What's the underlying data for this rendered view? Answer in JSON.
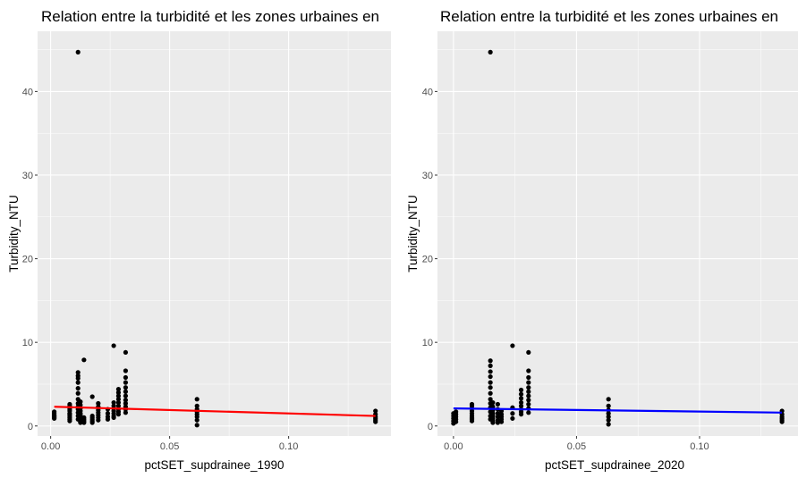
{
  "chart_data": [
    {
      "type": "scatter",
      "title": "Relation entre la turbidité et les zones urbaines en",
      "xlabel": "pctSET_supdrainee_1990",
      "ylabel": "Turbidity_NTU",
      "xlim": [
        -0.0055,
        0.143
      ],
      "ylim": [
        -1.2,
        47.2
      ],
      "x_ticks": [
        0.0,
        0.05,
        0.1
      ],
      "x_tick_labels": [
        "0.00",
        "0.05",
        "0.10"
      ],
      "y_ticks": [
        0,
        10,
        20,
        30,
        40
      ],
      "y_tick_labels": [
        "0",
        "10",
        "20",
        "30",
        "40"
      ],
      "grid": true,
      "points": {
        "x": [
          0.0015,
          0.0015,
          0.0015,
          0.0015,
          0.0015,
          0.0015,
          0.0015,
          0.008,
          0.008,
          0.008,
          0.008,
          0.008,
          0.008,
          0.008,
          0.008,
          0.008,
          0.008,
          0.008,
          0.0115,
          0.0115,
          0.0115,
          0.0115,
          0.0115,
          0.0115,
          0.0115,
          0.0115,
          0.0115,
          0.0115,
          0.0115,
          0.0115,
          0.0115,
          0.0115,
          0.0125,
          0.0125,
          0.0125,
          0.0125,
          0.0125,
          0.0125,
          0.0125,
          0.0125,
          0.0125,
          0.0125,
          0.0125,
          0.014,
          0.014,
          0.014,
          0.014,
          0.014,
          0.0175,
          0.0175,
          0.0175,
          0.0175,
          0.0175,
          0.0175,
          0.02,
          0.02,
          0.02,
          0.02,
          0.02,
          0.02,
          0.02,
          0.024,
          0.024,
          0.024,
          0.024,
          0.0265,
          0.0265,
          0.0265,
          0.0265,
          0.0265,
          0.0265,
          0.0265,
          0.0265,
          0.0285,
          0.0285,
          0.0285,
          0.0285,
          0.0285,
          0.0285,
          0.0285,
          0.0285,
          0.0285,
          0.0315,
          0.0315,
          0.0315,
          0.0315,
          0.0315,
          0.0315,
          0.0315,
          0.0315,
          0.0315,
          0.0315,
          0.0315,
          0.0315,
          0.0615,
          0.0615,
          0.0615,
          0.0615,
          0.0615,
          0.0615,
          0.0615,
          0.0615,
          0.1365,
          0.1365,
          0.1365,
          0.1365,
          0.1365,
          0.1365
        ],
        "y": [
          0.9,
          1.1,
          1.3,
          1.5,
          1.7,
          1.2,
          1.0,
          0.6,
          0.8,
          1.0,
          1.2,
          1.5,
          1.8,
          2.0,
          2.2,
          2.4,
          2.6,
          1.4,
          44.7,
          6.4,
          6.0,
          5.7,
          5.2,
          4.5,
          3.9,
          3.2,
          2.7,
          2.3,
          2.0,
          1.6,
          1.2,
          0.8,
          2.9,
          2.5,
          2.1,
          1.8,
          1.5,
          1.3,
          1.1,
          0.9,
          0.7,
          0.5,
          0.4,
          7.9,
          1.0,
          0.8,
          0.6,
          0.4,
          3.5,
          1.2,
          1.0,
          0.8,
          0.6,
          0.4,
          2.7,
          2.3,
          1.9,
          1.6,
          1.3,
          1.0,
          0.7,
          2.0,
          1.5,
          1.1,
          0.8,
          9.6,
          2.8,
          2.4,
          2.1,
          1.8,
          1.5,
          1.2,
          1.0,
          4.4,
          4.0,
          3.6,
          3.2,
          2.8,
          2.4,
          2.0,
          1.7,
          1.4,
          8.8,
          6.6,
          5.8,
          5.2,
          4.6,
          4.1,
          3.6,
          3.1,
          2.7,
          2.3,
          2.0,
          1.6,
          3.2,
          2.4,
          2.0,
          1.7,
          1.4,
          1.1,
          0.7,
          0.1,
          1.8,
          1.4,
          1.1,
          0.9,
          0.7,
          0.5
        ]
      },
      "fit_line": {
        "x": [
          0.0015,
          0.1365
        ],
        "y": [
          2.3,
          1.2
        ],
        "color": "#ff0000"
      }
    },
    {
      "type": "scatter",
      "title": "Relation entre la turbidité et les zones urbaines en",
      "xlabel": "pctSET_supdrainee_2020",
      "ylabel": "Turbidity_NTU",
      "xlim": [
        -0.0065,
        0.14
      ],
      "ylim": [
        -1.2,
        47.2
      ],
      "x_ticks": [
        0.0,
        0.05,
        0.1
      ],
      "x_tick_labels": [
        "0.00",
        "0.05",
        "0.10"
      ],
      "y_ticks": [
        0,
        10,
        20,
        30,
        40
      ],
      "y_tick_labels": [
        "0",
        "10",
        "20",
        "30",
        "40"
      ],
      "grid": true,
      "points": {
        "x": [
          0.0,
          0.0,
          0.0,
          0.0,
          0.0,
          0.001,
          0.001,
          0.001,
          0.001,
          0.001,
          0.0075,
          0.0075,
          0.0075,
          0.0075,
          0.0075,
          0.0075,
          0.0075,
          0.0075,
          0.0075,
          0.0075,
          0.015,
          0.015,
          0.015,
          0.015,
          0.015,
          0.015,
          0.015,
          0.015,
          0.015,
          0.015,
          0.015,
          0.015,
          0.015,
          0.015,
          0.016,
          0.016,
          0.016,
          0.016,
          0.016,
          0.016,
          0.016,
          0.016,
          0.018,
          0.018,
          0.018,
          0.018,
          0.018,
          0.018,
          0.0195,
          0.0195,
          0.0195,
          0.0195,
          0.0195,
          0.024,
          0.024,
          0.024,
          0.024,
          0.0275,
          0.0275,
          0.0275,
          0.0275,
          0.0275,
          0.0275,
          0.0275,
          0.0275,
          0.0305,
          0.0305,
          0.0305,
          0.0305,
          0.0305,
          0.0305,
          0.0305,
          0.0305,
          0.0305,
          0.0305,
          0.0305,
          0.063,
          0.063,
          0.063,
          0.063,
          0.063,
          0.063,
          0.063,
          0.1335,
          0.1335,
          0.1335,
          0.1335,
          0.1335,
          0.1335
        ],
        "y": [
          0.3,
          0.6,
          0.9,
          1.2,
          1.5,
          0.5,
          0.8,
          1.1,
          1.4,
          1.7,
          0.6,
          0.9,
          1.2,
          1.5,
          1.8,
          2.1,
          2.4,
          2.6,
          1.0,
          0.8,
          44.7,
          7.8,
          7.2,
          6.5,
          5.9,
          5.2,
          4.6,
          3.9,
          3.2,
          2.7,
          2.2,
          1.7,
          1.2,
          0.8,
          2.8,
          2.3,
          1.9,
          1.5,
          1.2,
          0.9,
          0.6,
          0.4,
          2.6,
          2.0,
          1.5,
          1.1,
          0.7,
          0.4,
          1.8,
          1.4,
          1.1,
          0.8,
          0.5,
          9.6,
          2.2,
          1.5,
          0.9,
          4.3,
          3.8,
          3.3,
          2.8,
          2.4,
          2.0,
          1.7,
          1.4,
          8.8,
          6.6,
          5.8,
          5.2,
          4.6,
          4.1,
          3.6,
          3.1,
          2.6,
          2.1,
          1.6,
          3.2,
          2.4,
          1.9,
          1.5,
          1.1,
          0.7,
          0.2,
          1.8,
          1.4,
          1.1,
          0.9,
          0.7,
          0.5
        ]
      },
      "fit_line": {
        "x": [
          0.0,
          0.1335
        ],
        "y": [
          2.1,
          1.6
        ],
        "color": "#0000ff"
      }
    }
  ]
}
